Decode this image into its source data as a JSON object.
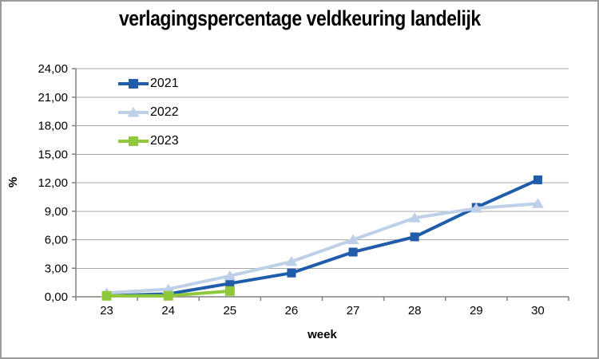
{
  "window": {
    "background": "#ffffff",
    "border_color": "#9a9a9a"
  },
  "chart_data": {
    "type": "line",
    "title": "verlagingspercentage veldkeuring landelijk",
    "xlabel": "week",
    "ylabel": "%",
    "categories": [
      "23",
      "24",
      "25",
      "26",
      "27",
      "28",
      "29",
      "30"
    ],
    "ylim": [
      0,
      24
    ],
    "ytick_step": 3,
    "ytick_labels": [
      "0,00",
      "3,00",
      "6,00",
      "9,00",
      "12,00",
      "15,00",
      "18,00",
      "21,00",
      "24,00"
    ],
    "grid": "horizontal",
    "legend_position": "top-left-inside",
    "axis_color": "#808080",
    "grid_color": "#a8a8a8",
    "text_color": "#000000",
    "series": [
      {
        "name": "2021",
        "color": "#1f5ca9",
        "marker": "square",
        "values": [
          0.1,
          0.3,
          1.4,
          2.5,
          4.7,
          6.3,
          9.4,
          12.3
        ]
      },
      {
        "name": "2022",
        "color": "#bdd0e8",
        "marker": "triangle",
        "values": [
          0.4,
          0.8,
          2.2,
          3.7,
          6.0,
          8.3,
          9.3,
          9.8
        ]
      },
      {
        "name": "2023",
        "color": "#90c83c",
        "marker": "square",
        "values": [
          0.1,
          0.1,
          0.6,
          null,
          null,
          null,
          null,
          null
        ]
      }
    ]
  }
}
